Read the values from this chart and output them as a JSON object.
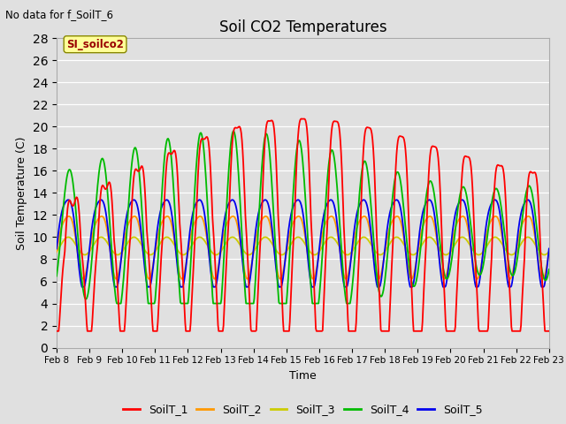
{
  "title": "Soil CO2 Temperatures",
  "subtitle": "No data for f_SoilT_6",
  "xlabel": "Time",
  "ylabel": "Soil Temperature (C)",
  "ylim": [
    0,
    28
  ],
  "yticks": [
    0,
    2,
    4,
    6,
    8,
    10,
    12,
    14,
    16,
    18,
    20,
    22,
    24,
    26,
    28
  ],
  "xtick_labels": [
    "Feb 8",
    "Feb 9",
    "Feb 10",
    "Feb 11",
    "Feb 12",
    "Feb 13",
    "Feb 14",
    "Feb 15",
    "Feb 16",
    "Feb 17",
    "Feb 18",
    "Feb 19",
    "Feb 20",
    "Feb 21",
    "Feb 22",
    "Feb 23"
  ],
  "series_colors": {
    "SoilT_1": "#ff0000",
    "SoilT_2": "#ff9900",
    "SoilT_3": "#cccc00",
    "SoilT_4": "#00bb00",
    "SoilT_5": "#0000ee"
  },
  "background_color": "#e0e0e0",
  "plot_bg_color": "#e0e0e0",
  "grid_color": "#ffffff",
  "annotation_box_color": "#ffff99",
  "annotation_text_color": "#990000",
  "annotation_text": "SI_soilco2"
}
